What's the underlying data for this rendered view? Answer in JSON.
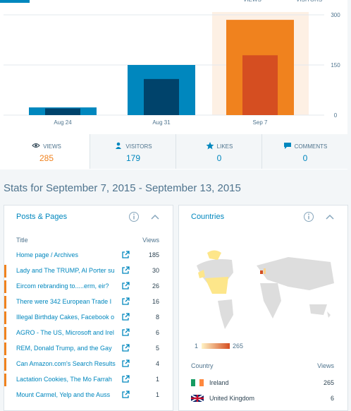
{
  "chart_data": {
    "type": "bar",
    "categories": [
      "Aug 24",
      "Aug 31",
      "Sep 7"
    ],
    "series": [
      {
        "name": "VIEWS",
        "color": "#0087be",
        "selected_color": "#f0821e",
        "values": [
          23,
          150,
          285
        ]
      },
      {
        "name": "VISITORS",
        "color": "#00436b",
        "selected_color": "#d54e21",
        "values": [
          20,
          108,
          179
        ]
      }
    ],
    "selected_category": 2,
    "ylim": [
      0,
      300
    ],
    "yticks": [
      0,
      150,
      300
    ],
    "grid": true
  },
  "tabs": [
    {
      "label": "VIEWS",
      "value": 285
    },
    {
      "label": "VISITORS",
      "value": 179
    },
    {
      "label": "LIKES",
      "value": 0
    },
    {
      "label": "COMMENTS",
      "value": 0
    }
  ],
  "period_title": "Stats for September 7, 2015 - September 13, 2015",
  "posts": {
    "title": "Posts & Pages",
    "col_title": "Title",
    "col_views": "Views",
    "rows": [
      {
        "title": "Home page / Archives",
        "views": 185
      },
      {
        "title": "Lady and The TRUMP, Al Porter su",
        "views": 30
      },
      {
        "title": "Eircom rebranding to.....erm, eir?",
        "views": 26
      },
      {
        "title": "There were 342 European Trade I",
        "views": 16
      },
      {
        "title": "Illegal Birthday Cakes, Facebook o",
        "views": 8
      },
      {
        "title": "AGRO - The US, Microsoft and Irel",
        "views": 6
      },
      {
        "title": "REM, Donald Trump, and the Gay",
        "views": 5
      },
      {
        "title": "Can Amazon.com's Search Results",
        "views": 4
      },
      {
        "title": "Lactation Cookies, The Mo Farrah",
        "views": 1
      },
      {
        "title": "Mount Carmel, Yelp and the Auss",
        "views": 1
      }
    ]
  },
  "countries": {
    "title": "Countries",
    "legend_min": 1,
    "legend_max": 265,
    "col_country": "Country",
    "col_views": "Views",
    "rows": [
      {
        "name": "Ireland",
        "views": 265
      },
      {
        "name": "United Kingdom",
        "views": 6
      }
    ]
  }
}
